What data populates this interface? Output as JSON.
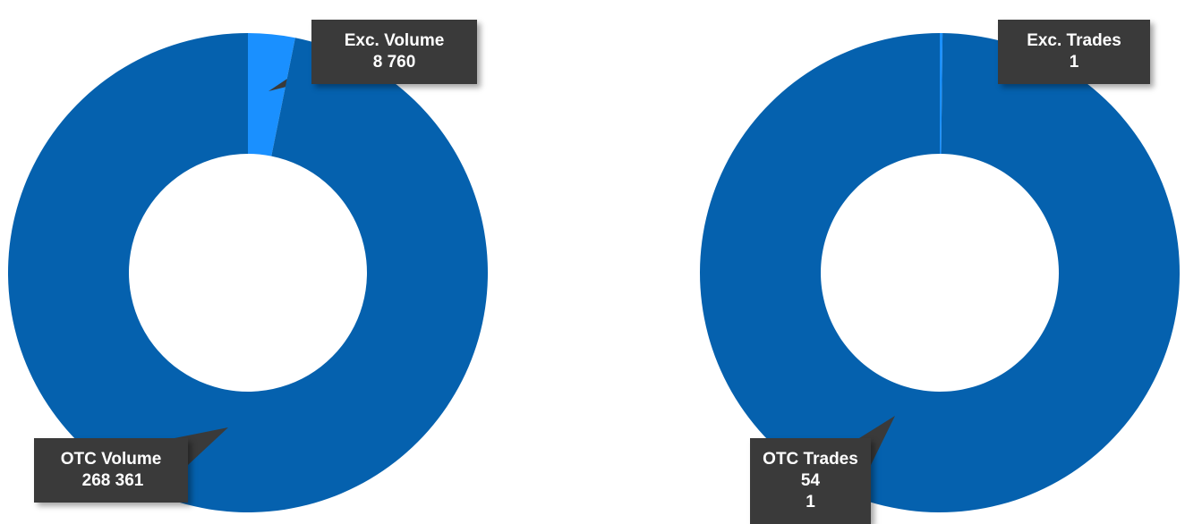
{
  "chart_data": [
    {
      "type": "pie",
      "categories": [
        "Exc. Volume",
        "OTC Volume"
      ],
      "values": [
        8760,
        268361
      ],
      "value_labels": [
        "8 760",
        "268 361"
      ],
      "colors": [
        "#1a90ff",
        "#0561ae"
      ]
    },
    {
      "type": "pie",
      "categories": [
        "Exc. Trades",
        "OTC Trades"
      ],
      "values": [
        1,
        541
      ],
      "value_labels": [
        "1",
        "54 1"
      ],
      "colors": [
        "#1a90ff",
        "#0561ae"
      ]
    }
  ]
}
